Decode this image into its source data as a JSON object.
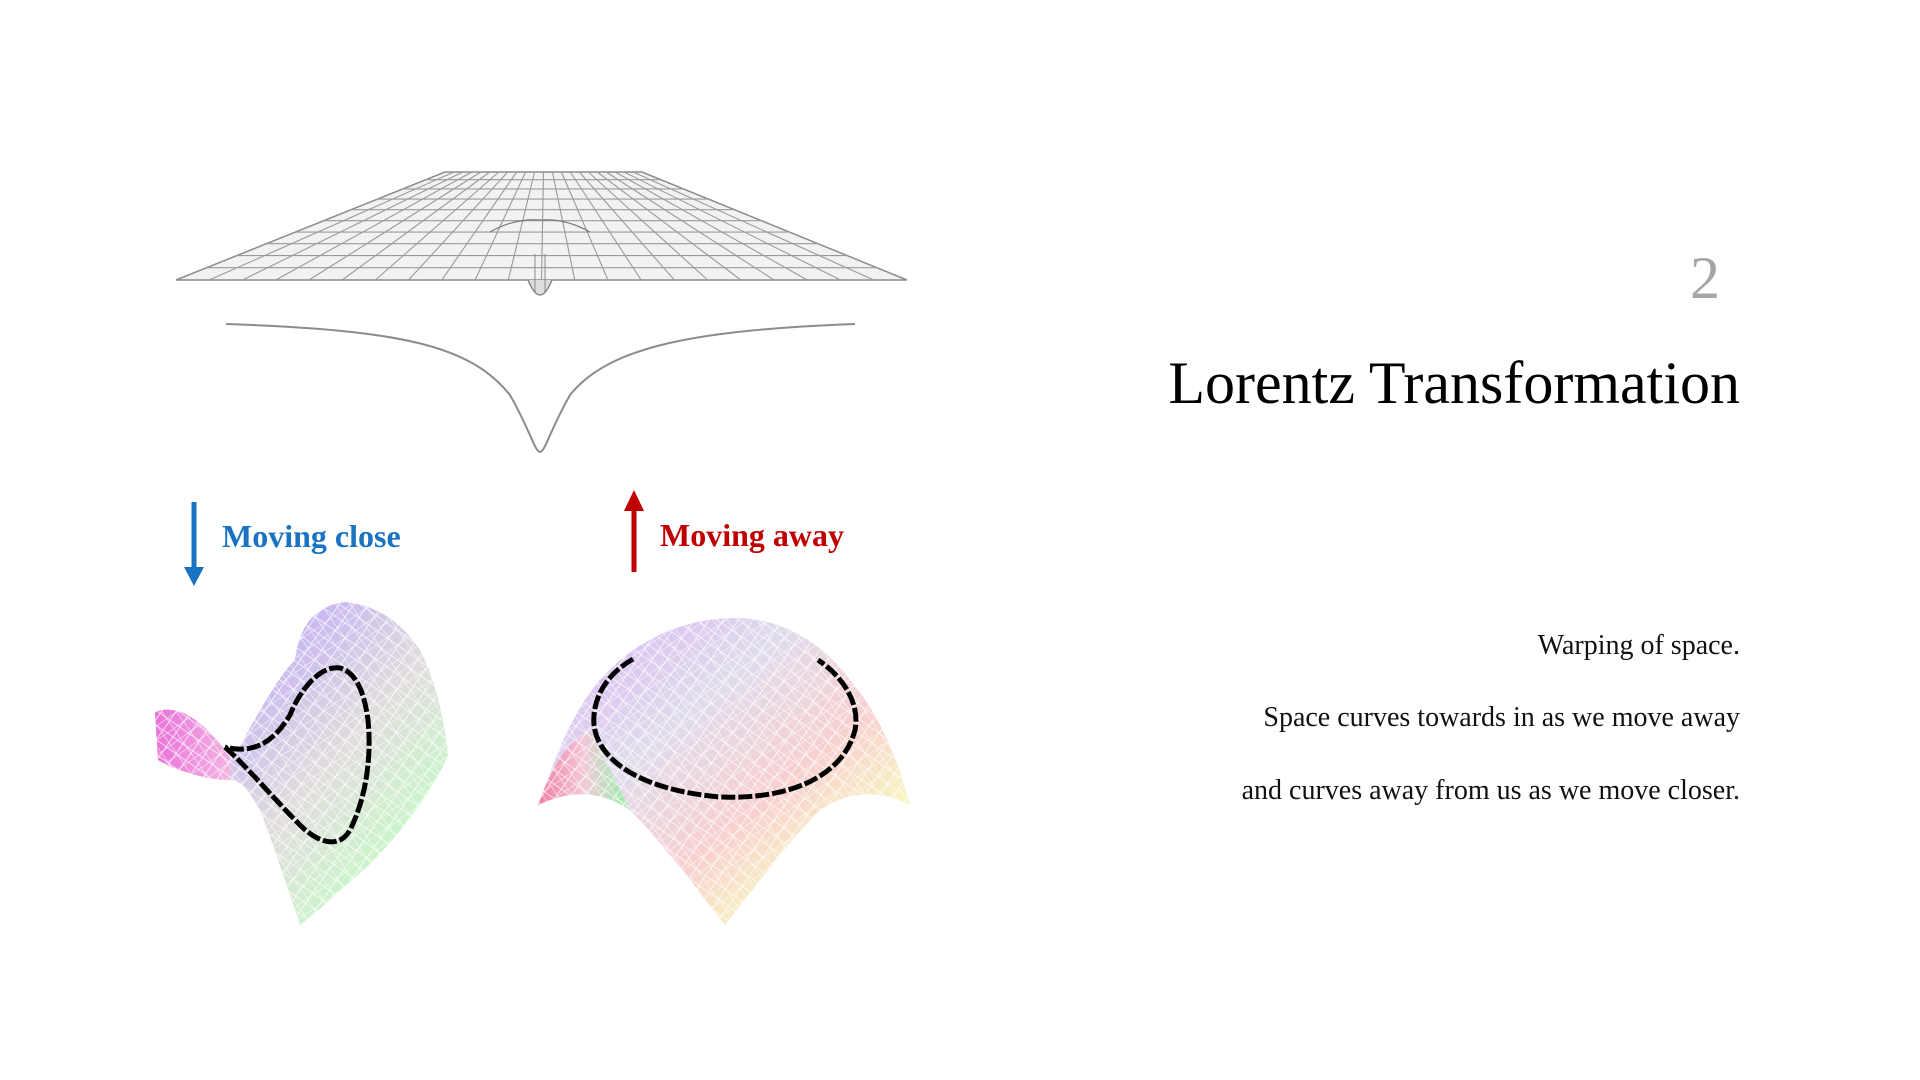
{
  "slide": {
    "number": "2",
    "title": "Lorentz Transformation",
    "body_lines": [
      "Warping of space.",
      "Space curves towards in as we move away",
      "and curves away from us as we move closer."
    ]
  },
  "figure": {
    "labels": {
      "moving_close": "Moving close",
      "moving_away": "Moving away"
    },
    "colors": {
      "moving_close": "#1a73c2",
      "moving_away": "#c00000",
      "grid_line": "#8c8c8c",
      "loop_outline": "#000000"
    },
    "illustrations": [
      "spacetime-gravity-well-grid",
      "saddle-surface-mesh",
      "dome-surface-mesh"
    ]
  }
}
